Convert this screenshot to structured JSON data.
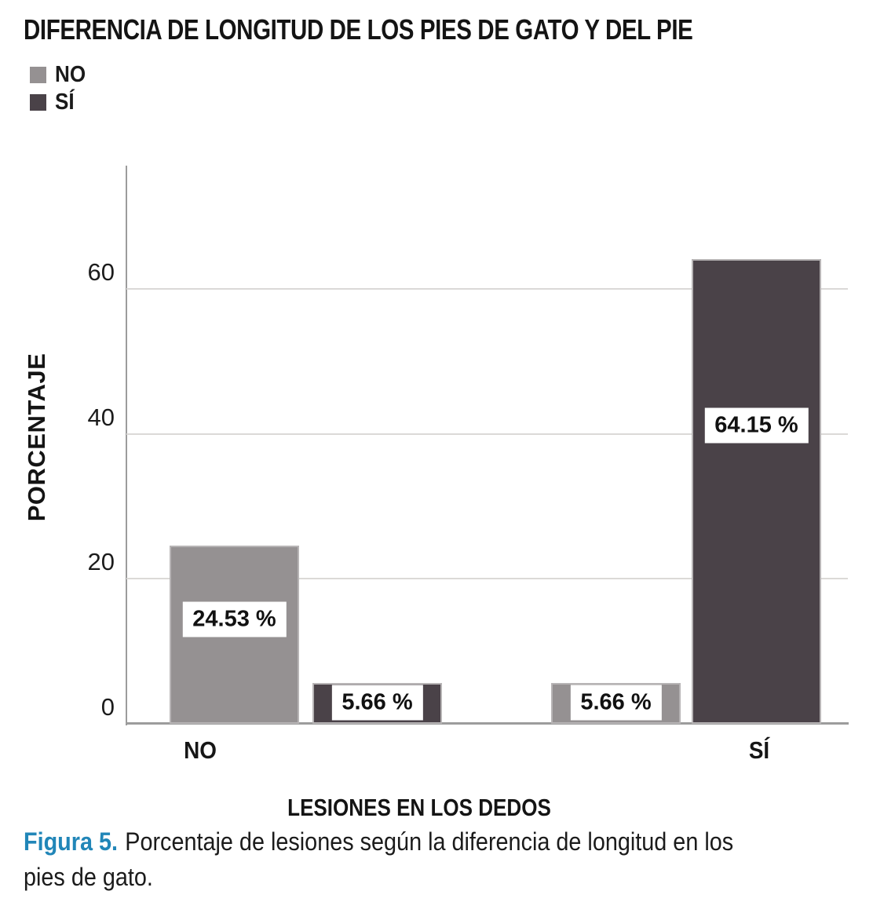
{
  "figure": {
    "title": "DIFERENCIA DE LONGITUD DE LOS PIES DE GATO Y DEL PIE"
  },
  "legend": {
    "items": [
      {
        "label": "NO",
        "color": "#959192"
      },
      {
        "label": "SÍ",
        "color": "#4a4248"
      }
    ]
  },
  "chart_data": {
    "type": "bar",
    "title": "DIFERENCIA DE LONGITUD DE LOS PIES DE GATO Y DEL PIE",
    "xlabel": "LESIONES EN LOS DEDOS",
    "ylabel": "PORCENTAJE",
    "categories": [
      "NO",
      "SÍ"
    ],
    "series": [
      {
        "name": "NO",
        "color": "#959192",
        "values": [
          24.53,
          5.66
        ],
        "labels": [
          "24.53 %",
          "5.66 %"
        ]
      },
      {
        "name": "SÍ",
        "color": "#4a4248",
        "values": [
          5.66,
          64.15
        ],
        "labels": [
          "5.66 %",
          "64.15 %"
        ]
      }
    ],
    "ylim": [
      0,
      77
    ],
    "yticks": [
      0,
      20,
      40,
      60
    ],
    "grid": true,
    "gridline_color": "#dbd9d7",
    "legend_position": "top-left"
  },
  "caption": {
    "label": "Figura 5.",
    "label_color": "#2186b8",
    "lines": [
      "Porcentaje de lesiones según la diferencia de longitud en los",
      "pies de gato."
    ]
  }
}
